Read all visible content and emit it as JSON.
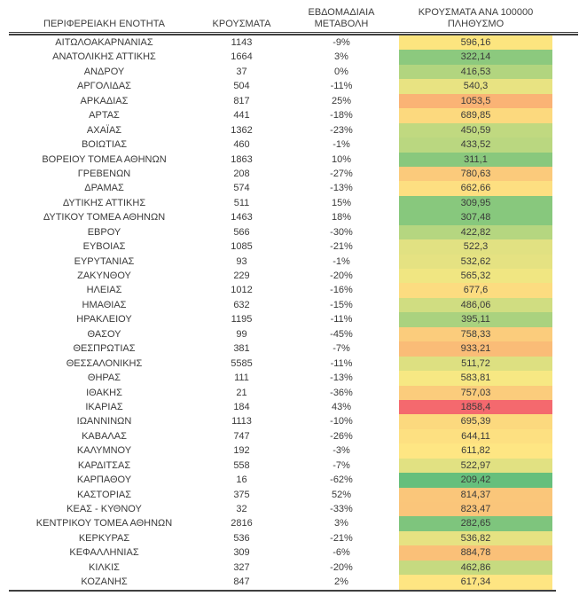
{
  "chart_data": {
    "type": "table",
    "columns": [
      "ΠΕΡΙΦΕΡΕΙΑΚΗ ΕΝΟΤΗΤΑ",
      "ΚΡΟΥΣΜΑΤΑ",
      "ΕΒΔΟΜΑΔΙΑΙΑ ΜΕΤΑΒΟΛΗ",
      "ΚΡΟΥΣΜΑΤΑ ΑΝΑ 100000 ΠΛΗΘΥΣΜΟ"
    ],
    "color_scale": {
      "applies_to": "ΚΡΟΥΣΜΑΤΑ ΑΝΑ 100000 ΠΛΗΘΥΣΜΟ",
      "min_color": "#63BE7B",
      "mid_color": "#FFEB84",
      "max_color": "#F8696B"
    },
    "rows": [
      {
        "region": "ΑΙΤΩΛΟΑΚΑΡΝΑΝΙΑΣ",
        "cases": "1143",
        "weekly_change": "-9%",
        "per_100k": "596,16",
        "color": "#FCE57F"
      },
      {
        "region": "ΑΝΑΤΟΛΙΚΗΣ ΑΤΤΙΚΗΣ",
        "cases": "1664",
        "weekly_change": "3%",
        "per_100k": "322,14",
        "color": "#8CC97E"
      },
      {
        "region": "ΑΝΔΡΟΥ",
        "cases": "37",
        "weekly_change": "0%",
        "per_100k": "416,53",
        "color": "#B2D57F"
      },
      {
        "region": "ΑΡΓΟΛΙΔΑΣ",
        "cases": "504",
        "weekly_change": "-11%",
        "per_100k": "540,3",
        "color": "#E8E382"
      },
      {
        "region": "ΑΡΚΑΔΙΑΣ",
        "cases": "817",
        "weekly_change": "25%",
        "per_100k": "1053,5",
        "color": "#FAB375"
      },
      {
        "region": "ΑΡΤΑΣ",
        "cases": "441",
        "weekly_change": "-18%",
        "per_100k": "689,85",
        "color": "#FCD97E"
      },
      {
        "region": "ΑΧΑΪΑΣ",
        "cases": "1362",
        "weekly_change": "-23%",
        "per_100k": "450,59",
        "color": "#C0D980"
      },
      {
        "region": "ΒΟΙΩΤΙΑΣ",
        "cases": "460",
        "weekly_change": "-1%",
        "per_100k": "433,52",
        "color": "#BAD780"
      },
      {
        "region": "ΒΟΡΕΙΟΥ ΤΟΜΕΑ ΑΘΗΝΩΝ",
        "cases": "1863",
        "weekly_change": "10%",
        "per_100k": "311,1",
        "color": "#89C87D"
      },
      {
        "region": "ΓΡΕΒΕΝΩΝ",
        "cases": "208",
        "weekly_change": "-27%",
        "per_100k": "780,63",
        "color": "#FBCA7B"
      },
      {
        "region": "ΔΡΑΜΑΣ",
        "cases": "574",
        "weekly_change": "-13%",
        "per_100k": "662,66",
        "color": "#FDDF81"
      },
      {
        "region": "ΔΥΤΙΚΗΣ ΑΤΤΙΚΗΣ",
        "cases": "511",
        "weekly_change": "15%",
        "per_100k": "309,95",
        "color": "#88C87D"
      },
      {
        "region": "ΔΥΤΙΚΟΥ ΤΟΜΕΑ ΑΘΗΝΩΝ",
        "cases": "1463",
        "weekly_change": "18%",
        "per_100k": "307,48",
        "color": "#87C87D"
      },
      {
        "region": "ΕΒΡΟΥ",
        "cases": "566",
        "weekly_change": "-30%",
        "per_100k": "422,82",
        "color": "#B5D680"
      },
      {
        "region": "ΕΥΒΟΙΑΣ",
        "cases": "1085",
        "weekly_change": "-21%",
        "per_100k": "522,3",
        "color": "#E1E182"
      },
      {
        "region": "ΕΥΡΥΤΑΝΙΑΣ",
        "cases": "93",
        "weekly_change": "-1%",
        "per_100k": "532,62",
        "color": "#E5E282"
      },
      {
        "region": "ΖΑΚΥΝΘΟΥ",
        "cases": "229",
        "weekly_change": "-20%",
        "per_100k": "565,32",
        "color": "#F0E682"
      },
      {
        "region": "ΗΛΕΙΑΣ",
        "cases": "1012",
        "weekly_change": "-16%",
        "per_100k": "677,6",
        "color": "#FCDC80"
      },
      {
        "region": "ΗΜΑΘΙΑΣ",
        "cases": "632",
        "weekly_change": "-15%",
        "per_100k": "486,06",
        "color": "#D0DD81"
      },
      {
        "region": "ΗΡΑΚΛΕΙΟΥ",
        "cases": "1195",
        "weekly_change": "-11%",
        "per_100k": "395,11",
        "color": "#AAD27F"
      },
      {
        "region": "ΘΑΣΟΥ",
        "cases": "99",
        "weekly_change": "-45%",
        "per_100k": "758,33",
        "color": "#FBCC7C"
      },
      {
        "region": "ΘΕΣΠΡΩΤΙΑΣ",
        "cases": "381",
        "weekly_change": "-7%",
        "per_100k": "933,21",
        "color": "#FABC77"
      },
      {
        "region": "ΘΕΣΣΑΛΟΝΙΚΗΣ",
        "cases": "5585",
        "weekly_change": "-11%",
        "per_100k": "511,72",
        "color": "#DDE081"
      },
      {
        "region": "ΘΗΡΑΣ",
        "cases": "111",
        "weekly_change": "-13%",
        "per_100k": "583,81",
        "color": "#F7E883"
      },
      {
        "region": "ΙΘΑΚΗΣ",
        "cases": "21",
        "weekly_change": "-36%",
        "per_100k": "757,03",
        "color": "#FBCC7C"
      },
      {
        "region": "ΙΚΑΡΙΑΣ",
        "cases": "184",
        "weekly_change": "43%",
        "per_100k": "1858,4",
        "color": "#F4696E"
      },
      {
        "region": "ΙΩΑΝΝΙΝΩΝ",
        "cases": "1113",
        "weekly_change": "-10%",
        "per_100k": "695,39",
        "color": "#FCD97E"
      },
      {
        "region": "ΚΑΒΑΛΑΣ",
        "cases": "747",
        "weekly_change": "-26%",
        "per_100k": "644,11",
        "color": "#FDE081"
      },
      {
        "region": "ΚΑΛΥΜΝΟΥ",
        "cases": "192",
        "weekly_change": "-3%",
        "per_100k": "611,82",
        "color": "#FEE683"
      },
      {
        "region": "ΚΑΡΔΙΤΣΑΣ",
        "cases": "558",
        "weekly_change": "-7%",
        "per_100k": "522,97",
        "color": "#E1E182"
      },
      {
        "region": "ΚΑΡΠΑΘΟΥ",
        "cases": "16",
        "weekly_change": "-62%",
        "per_100k": "209,42",
        "color": "#66BF7C"
      },
      {
        "region": "ΚΑΣΤΟΡΙΑΣ",
        "cases": "375",
        "weekly_change": "52%",
        "per_100k": "814,37",
        "color": "#FAC67A"
      },
      {
        "region": "ΚΕΑΣ - ΚΥΘΝΟΥ",
        "cases": "32",
        "weekly_change": "-33%",
        "per_100k": "823,47",
        "color": "#FAC57A"
      },
      {
        "region": "ΚΕΝΤΡΙΚΟΥ ΤΟΜΕΑ ΑΘΗΝΩΝ",
        "cases": "2816",
        "weekly_change": "3%",
        "per_100k": "282,65",
        "color": "#7EC57D"
      },
      {
        "region": "ΚΕΡΚΥΡΑΣ",
        "cases": "536",
        "weekly_change": "-21%",
        "per_100k": "536,82",
        "color": "#E6E282"
      },
      {
        "region": "ΚΕΦΑΛΛΗΝΙΑΣ",
        "cases": "309",
        "weekly_change": "-6%",
        "per_100k": "884,78",
        "color": "#FAC078"
      },
      {
        "region": "ΚΙΛΚΙΣ",
        "cases": "327",
        "weekly_change": "-20%",
        "per_100k": "462,86",
        "color": "#C6DA80"
      },
      {
        "region": "ΚΟΖΑΝΗΣ",
        "cases": "847",
        "weekly_change": "2%",
        "per_100k": "617,34",
        "color": "#FEE582"
      }
    ]
  }
}
